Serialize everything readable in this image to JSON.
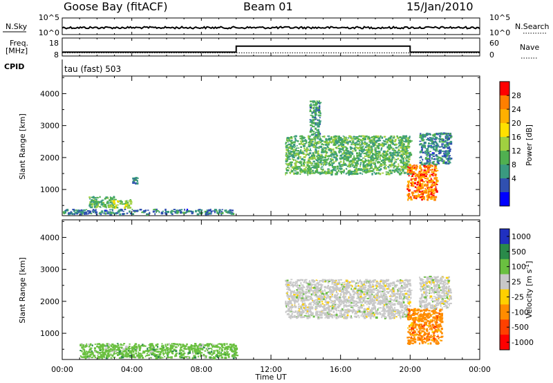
{
  "header": {
    "station": "Goose Bay (fitACF)",
    "beam": "Beam 01",
    "date": "15/Jan/2010"
  },
  "status_panels": {
    "nsky_label": "N.Sky",
    "nsearch_label": "N.Search",
    "nsky_ticks": [
      "10^5",
      "10^0"
    ],
    "nsearch_ticks": [
      "10^5",
      "10^0"
    ],
    "freq_label_1": "Freq.",
    "freq_label_2": "[MHz]",
    "freq_ticks": [
      "18",
      "8"
    ],
    "nave_label": "Nave",
    "nave_ticks": [
      "60",
      "0"
    ],
    "cpid_label": "CPID",
    "cpid_value": "tau (fast) 503"
  },
  "chart_data": [
    {
      "type": "line",
      "panel": "noise",
      "x_range_hours": [
        0,
        24
      ],
      "y_scale": "log",
      "series": [
        {
          "name": "N.Sky",
          "style": "solid",
          "approx_level": "10^1.5 nearly constant"
        },
        {
          "name": "N.Search",
          "style": "dotted",
          "approx_level": "10^1.5 nearly constant"
        }
      ]
    },
    {
      "type": "line",
      "panel": "frequency",
      "x_range_hours": [
        0,
        24
      ],
      "series": [
        {
          "name": "Freq.",
          "style": "dotted",
          "x": [
            0,
            24
          ],
          "y": [
            10.4,
            10.4
          ]
        },
        {
          "name": "Nave",
          "style": "solid",
          "x": [
            0,
            10,
            10,
            20,
            20,
            24
          ],
          "y": [
            13,
            13,
            33,
            33,
            13,
            13
          ]
        }
      ]
    },
    {
      "type": "heatmap",
      "panel": "power",
      "xlabel": "",
      "ylabel": "Slant Range [km]",
      "x_range_hours": [
        0,
        24
      ],
      "ylim": [
        180,
        4550
      ],
      "yticks": [
        1000,
        2000,
        3000,
        4000
      ],
      "colorbar": {
        "label": "Power [dB]",
        "ticks": [
          "28",
          "24",
          "20",
          "16",
          "12",
          "8",
          "4"
        ],
        "colors": [
          "#ff0000",
          "#ff7f00",
          "#ffb000",
          "#ffe000",
          "#a0d040",
          "#50b050",
          "#3a9a80",
          "#3050b0",
          "#0000ff"
        ]
      },
      "echo_regions": [
        {
          "x": [
            0,
            10
          ],
          "y": [
            250,
            400
          ],
          "value": 6
        },
        {
          "x": [
            1.5,
            3
          ],
          "y": [
            450,
            800
          ],
          "value": 10
        },
        {
          "x": [
            2.8,
            3.9
          ],
          "y": [
            450,
            700
          ],
          "value": 14
        },
        {
          "x": [
            4,
            4.3
          ],
          "y": [
            1200,
            1400
          ],
          "value": 6
        },
        {
          "x": [
            12.8,
            20
          ],
          "y": [
            1500,
            2700
          ],
          "value": 10
        },
        {
          "x": [
            14.2,
            14.8
          ],
          "y": [
            2700,
            3800
          ],
          "value": 8
        },
        {
          "x": [
            19.8,
            21.5
          ],
          "y": [
            700,
            1800
          ],
          "value": 24
        },
        {
          "x": [
            20.5,
            22.3
          ],
          "y": [
            1800,
            2800
          ],
          "value": 6
        }
      ]
    },
    {
      "type": "heatmap",
      "panel": "velocity",
      "xlabel": "Time UT",
      "ylabel": "Slant Range [km]",
      "x_range_hours": [
        0,
        24
      ],
      "xticks": [
        "00:00",
        "04:00",
        "08:00",
        "12:00",
        "16:00",
        "20:00",
        "00:00"
      ],
      "ylim": [
        180,
        4550
      ],
      "yticks": [
        1000,
        2000,
        3000,
        4000
      ],
      "colorbar": {
        "label": "Velocity [m s^-1]",
        "ticks": [
          "1000",
          "500",
          "100",
          "25",
          "-25",
          "-100",
          "-500",
          "-1000"
        ],
        "colors": [
          "#2030c0",
          "#2a8a4a",
          "#6ac040",
          "#c8c8c8",
          "#ffd000",
          "#ff8c00",
          "#ff4000",
          "#ff0000"
        ]
      },
      "echo_regions": [
        {
          "x": [
            1,
            10
          ],
          "y": [
            250,
            700
          ],
          "value": 100
        },
        {
          "x": [
            12.8,
            20
          ],
          "y": [
            1500,
            2700
          ],
          "value": 0
        },
        {
          "x": [
            19.8,
            21.8
          ],
          "y": [
            700,
            1800
          ],
          "value": -200
        },
        {
          "x": [
            20.5,
            22.3
          ],
          "y": [
            1800,
            2800
          ],
          "value": 0
        }
      ]
    }
  ]
}
